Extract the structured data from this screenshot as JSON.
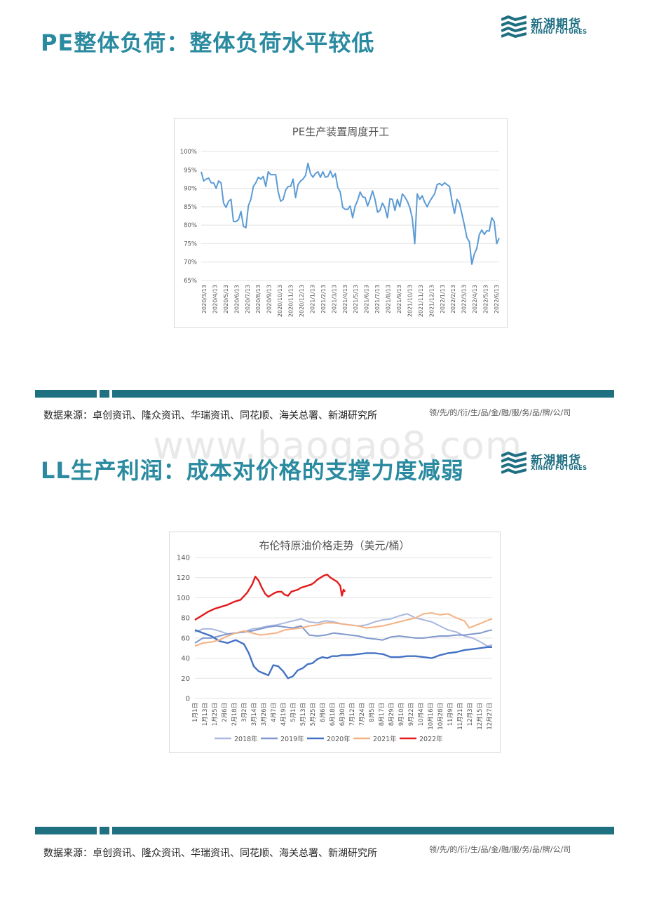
{
  "sections": [
    {
      "title": "PE整体负荷：整体负荷水平较低",
      "source": "数据来源：卓创资讯、隆众资讯、华瑞资讯、同花顺、海关总署、新湖研究所",
      "slogan": "领/先/的/衍/生/品/金/融/服/务/品/牌/公/司"
    },
    {
      "title": "LL生产利润：成本对价格的支撑力度减弱",
      "source": "数据来源：卓创资讯、隆众资讯、华瑞资讯、同花顺、海关总署、新湖研究所",
      "slogan": "领/先/的/衍/生/品/金/融/服/务/品/牌/公/司"
    }
  ],
  "logo": {
    "cn": "新湖期货",
    "en": "XINHU FUTURES",
    "color": "#1f6f82"
  },
  "watermark": "www.baogao8.com",
  "colors": {
    "title": "#2a8aa0",
    "divider": "#1f7081"
  },
  "chart_data": [
    {
      "type": "line",
      "title": "PE生产装置周度开工",
      "ylim": [
        0.65,
        1.0
      ],
      "yticks": [
        "65%",
        "70%",
        "75%",
        "80%",
        "85%",
        "90%",
        "95%",
        "100%"
      ],
      "x_tick_labels": [
        "2020/3/13",
        "2020/4/13",
        "2020/5/13",
        "2020/6/13",
        "2020/7/13",
        "2020/8/13",
        "2020/9/13",
        "2020/10/13",
        "2020/11/13",
        "2020/12/13",
        "2021/1/13",
        "2021/2/13",
        "2021/3/13",
        "2021/4/13",
        "2021/5/13",
        "2021/6/13",
        "2021/7/13",
        "2021/8/13",
        "2021/9/13",
        "2021/10/13",
        "2021/11/13",
        "2021/12/13",
        "2022/1/13",
        "2022/2/13",
        "2022/3/13",
        "2022/4/13",
        "2022/5/13",
        "2022/6/13"
      ],
      "grid": true,
      "series": [
        {
          "color": "#5b9bd5",
          "values": [
            0.945,
            0.92,
            0.925,
            0.928,
            0.915,
            0.915,
            0.9,
            0.92,
            0.915,
            0.86,
            0.848,
            0.865,
            0.87,
            0.81,
            0.81,
            0.815,
            0.837,
            0.797,
            0.793,
            0.853,
            0.87,
            0.905,
            0.915,
            0.93,
            0.925,
            0.932,
            0.905,
            0.945,
            0.937,
            0.937,
            0.937,
            0.89,
            0.865,
            0.87,
            0.895,
            0.905,
            0.905,
            0.925,
            0.875,
            0.91,
            0.92,
            0.925,
            0.935,
            0.968,
            0.94,
            0.93,
            0.94,
            0.945,
            0.93,
            0.945,
            0.93,
            0.932,
            0.947,
            0.93,
            0.94,
            0.902,
            0.89,
            0.848,
            0.843,
            0.843,
            0.852,
            0.82,
            0.852,
            0.867,
            0.89,
            0.877,
            0.875,
            0.852,
            0.87,
            0.893,
            0.87,
            0.835,
            0.84,
            0.86,
            0.847,
            0.82,
            0.872,
            0.87,
            0.84,
            0.87,
            0.85,
            0.885,
            0.877,
            0.865,
            0.848,
            0.82,
            0.75,
            0.885,
            0.87,
            0.88,
            0.862,
            0.85,
            0.864,
            0.875,
            0.885,
            0.91,
            0.913,
            0.908,
            0.915,
            0.91,
            0.905,
            0.865,
            0.832,
            0.87,
            0.86,
            0.83,
            0.8,
            0.766,
            0.755,
            0.694,
            0.722,
            0.737,
            0.775,
            0.787,
            0.775,
            0.785,
            0.784,
            0.82,
            0.81,
            0.75,
            0.765
          ]
        }
      ]
    },
    {
      "type": "line",
      "title": "布伦特原油价格走势（美元/桶）",
      "ylim": [
        0,
        140
      ],
      "yticks": [
        "0",
        "20",
        "40",
        "60",
        "80",
        "100",
        "120",
        "140"
      ],
      "x_tick_labels": [
        "1月1日",
        "1月13日",
        "1月25日",
        "2月6日",
        "2月18日",
        "3月2日",
        "3月14日",
        "3月26日",
        "4月7日",
        "4月19日",
        "5月1日",
        "5月13日",
        "5月25日",
        "6月6日",
        "6月18日",
        "6月30日",
        "7月12日",
        "7月24日",
        "8月5日",
        "8月17日",
        "8月29日",
        "9月10日",
        "9月22日",
        "10月4日",
        "10月16日",
        "10月28日",
        "11月9日",
        "11月21日",
        "12月3日",
        "12月15日",
        "12月27日"
      ],
      "legend": {
        "position": "bottom"
      },
      "grid": true,
      "series": [
        {
          "name": "2018年",
          "color": "#a9b8df",
          "points": [
            [
              0,
              66
            ],
            [
              10,
              69
            ],
            [
              20,
              69
            ],
            [
              30,
              67
            ],
            [
              40,
              64
            ],
            [
              50,
              65
            ],
            [
              60,
              66
            ],
            [
              70,
              69
            ],
            [
              80,
              70
            ],
            [
              90,
              72
            ],
            [
              100,
              73
            ],
            [
              110,
              75
            ],
            [
              120,
              77
            ],
            [
              130,
              79
            ],
            [
              140,
              76
            ],
            [
              150,
              75
            ],
            [
              160,
              77
            ],
            [
              170,
              76
            ],
            [
              180,
              74
            ],
            [
              190,
              73
            ],
            [
              200,
              72
            ],
            [
              210,
              73
            ],
            [
              220,
              76
            ],
            [
              230,
              78
            ],
            [
              240,
              79
            ],
            [
              250,
              82
            ],
            [
              260,
              84
            ],
            [
              270,
              80
            ],
            [
              280,
              78
            ],
            [
              290,
              76
            ],
            [
              300,
              72
            ],
            [
              310,
              68
            ],
            [
              320,
              66
            ],
            [
              330,
              62
            ],
            [
              340,
              60
            ],
            [
              350,
              56
            ],
            [
              358,
              52
            ],
            [
              364,
              53
            ]
          ]
        },
        {
          "name": "2019年",
          "color": "#7f98cc",
          "points": [
            [
              0,
              55
            ],
            [
              10,
              60
            ],
            [
              20,
              60
            ],
            [
              30,
              62
            ],
            [
              40,
              64
            ],
            [
              50,
              65
            ],
            [
              60,
              66
            ],
            [
              70,
              67
            ],
            [
              80,
              69
            ],
            [
              90,
              71
            ],
            [
              100,
              72
            ],
            [
              110,
              71
            ],
            [
              120,
              70
            ],
            [
              130,
              72
            ],
            [
              140,
              63
            ],
            [
              150,
              62
            ],
            [
              160,
              63
            ],
            [
              170,
              65
            ],
            [
              180,
              64
            ],
            [
              190,
              63
            ],
            [
              200,
              62
            ],
            [
              210,
              60
            ],
            [
              220,
              59
            ],
            [
              230,
              58
            ],
            [
              240,
              61
            ],
            [
              250,
              62
            ],
            [
              260,
              61
            ],
            [
              270,
              60
            ],
            [
              280,
              60
            ],
            [
              290,
              61
            ],
            [
              300,
              62
            ],
            [
              310,
              62
            ],
            [
              320,
              63
            ],
            [
              330,
              63
            ],
            [
              340,
              64
            ],
            [
              350,
              65
            ],
            [
              358,
              67
            ],
            [
              364,
              68
            ]
          ]
        },
        {
          "name": "2020年",
          "color": "#4472c4",
          "points": [
            [
              0,
              68
            ],
            [
              10,
              65
            ],
            [
              20,
              62
            ],
            [
              30,
              57
            ],
            [
              40,
              55
            ],
            [
              50,
              58
            ],
            [
              60,
              54
            ],
            [
              66,
              45
            ],
            [
              72,
              32
            ],
            [
              78,
              27
            ],
            [
              84,
              25
            ],
            [
              90,
              23
            ],
            [
              96,
              33
            ],
            [
              102,
              32
            ],
            [
              108,
              27
            ],
            [
              114,
              20
            ],
            [
              120,
              22
            ],
            [
              126,
              28
            ],
            [
              132,
              30
            ],
            [
              138,
              34
            ],
            [
              144,
              35
            ],
            [
              150,
              39
            ],
            [
              156,
              41
            ],
            [
              162,
              40
            ],
            [
              168,
              42
            ],
            [
              174,
              42
            ],
            [
              180,
              43
            ],
            [
              190,
              43
            ],
            [
              200,
              44
            ],
            [
              210,
              45
            ],
            [
              220,
              45
            ],
            [
              230,
              44
            ],
            [
              240,
              41
            ],
            [
              250,
              41
            ],
            [
              260,
              42
            ],
            [
              270,
              42
            ],
            [
              280,
              41
            ],
            [
              290,
              40
            ],
            [
              300,
              43
            ],
            [
              310,
              45
            ],
            [
              320,
              46
            ],
            [
              330,
              48
            ],
            [
              340,
              49
            ],
            [
              350,
              50
            ],
            [
              358,
              51
            ],
            [
              364,
              51
            ]
          ]
        },
        {
          "name": "2021年",
          "color": "#f4b183",
          "points": [
            [
              0,
              52
            ],
            [
              10,
              55
            ],
            [
              20,
              56
            ],
            [
              30,
              58
            ],
            [
              40,
              62
            ],
            [
              50,
              65
            ],
            [
              60,
              67
            ],
            [
              70,
              65
            ],
            [
              80,
              63
            ],
            [
              90,
              64
            ],
            [
              100,
              65
            ],
            [
              110,
              68
            ],
            [
              120,
              69
            ],
            [
              130,
              70
            ],
            [
              140,
              72
            ],
            [
              150,
              73
            ],
            [
              160,
              75
            ],
            [
              170,
              75
            ],
            [
              180,
              74
            ],
            [
              190,
              73
            ],
            [
              200,
              72
            ],
            [
              210,
              70
            ],
            [
              220,
              71
            ],
            [
              230,
              72
            ],
            [
              240,
              74
            ],
            [
              250,
              76
            ],
            [
              260,
              78
            ],
            [
              270,
              80
            ],
            [
              280,
              84
            ],
            [
              290,
              85
            ],
            [
              300,
              83
            ],
            [
              310,
              84
            ],
            [
              320,
              80
            ],
            [
              330,
              77
            ],
            [
              336,
              70
            ],
            [
              342,
              72
            ],
            [
              348,
              74
            ],
            [
              354,
              76
            ],
            [
              360,
              78
            ],
            [
              364,
              79
            ]
          ]
        },
        {
          "name": "2022年",
          "color": "#e31a1c",
          "points": [
            [
              0,
              78
            ],
            [
              8,
              82
            ],
            [
              16,
              86
            ],
            [
              24,
              89
            ],
            [
              32,
              91
            ],
            [
              40,
              93
            ],
            [
              48,
              96
            ],
            [
              56,
              98
            ],
            [
              64,
              105
            ],
            [
              70,
              113
            ],
            [
              74,
              121
            ],
            [
              78,
              117
            ],
            [
              82,
              110
            ],
            [
              86,
              104
            ],
            [
              90,
              101
            ],
            [
              94,
              103
            ],
            [
              98,
              105
            ],
            [
              102,
              106
            ],
            [
              106,
              106
            ],
            [
              110,
              103
            ],
            [
              114,
              102
            ],
            [
              118,
              106
            ],
            [
              122,
              107
            ],
            [
              126,
              108
            ],
            [
              130,
              110
            ],
            [
              134,
              111
            ],
            [
              138,
              112
            ],
            [
              142,
              113
            ],
            [
              146,
              115
            ],
            [
              150,
              118
            ],
            [
              154,
              120
            ],
            [
              158,
              122
            ],
            [
              162,
              123
            ],
            [
              166,
              120
            ],
            [
              170,
              118
            ],
            [
              174,
              116
            ],
            [
              178,
              112
            ],
            [
              180,
              102
            ],
            [
              182,
              108
            ],
            [
              184,
              106
            ]
          ]
        }
      ]
    }
  ]
}
